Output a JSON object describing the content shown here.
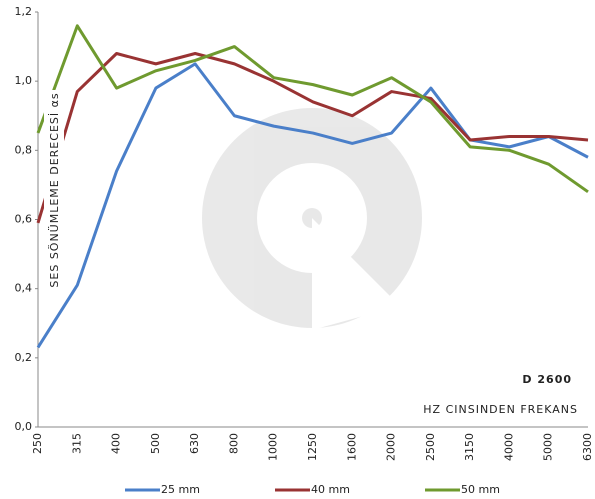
{
  "chart_data": {
    "type": "line",
    "ylabel": "SES SÖNÜMLEME DERECESİ αs",
    "annotations": [
      "D 2600",
      "HZ CINSINDEN FREKANS"
    ],
    "categories": [
      "250",
      "315",
      "400",
      "500",
      "630",
      "800",
      "1000",
      "1250",
      "1600",
      "2000",
      "2500",
      "3150",
      "4000",
      "5000",
      "6300"
    ],
    "series": [
      {
        "name": "25 mm",
        "color": "#4a7fc9",
        "values": [
          0.23,
          0.41,
          0.74,
          0.98,
          1.05,
          0.9,
          0.87,
          0.85,
          0.82,
          0.85,
          0.98,
          0.83,
          0.81,
          0.84,
          0.78
        ]
      },
      {
        "name": "40 mm",
        "color": "#993333",
        "values": [
          0.59,
          0.97,
          1.08,
          1.05,
          1.08,
          1.05,
          1.0,
          0.94,
          0.9,
          0.97,
          0.95,
          0.83,
          0.84,
          0.84,
          0.83
        ]
      },
      {
        "name": "50 mm",
        "color": "#6f9a2f",
        "values": [
          0.85,
          1.16,
          0.98,
          1.03,
          1.06,
          1.1,
          1.01,
          0.99,
          0.96,
          1.01,
          0.94,
          0.81,
          0.8,
          0.76,
          0.68
        ]
      }
    ],
    "ylim": [
      0,
      1.2
    ],
    "yticks": [
      {
        "value": 0,
        "label": "0,0"
      },
      {
        "value": 0.2,
        "label": "0,2"
      },
      {
        "value": 0.4,
        "label": "0,4"
      },
      {
        "value": 0.6,
        "label": "0,6"
      },
      {
        "value": 0.8,
        "label": "0,8"
      },
      {
        "value": 1,
        "label": "1,0"
      },
      {
        "value": 1.2,
        "label": "1,2"
      }
    ],
    "legend": "bottom"
  }
}
